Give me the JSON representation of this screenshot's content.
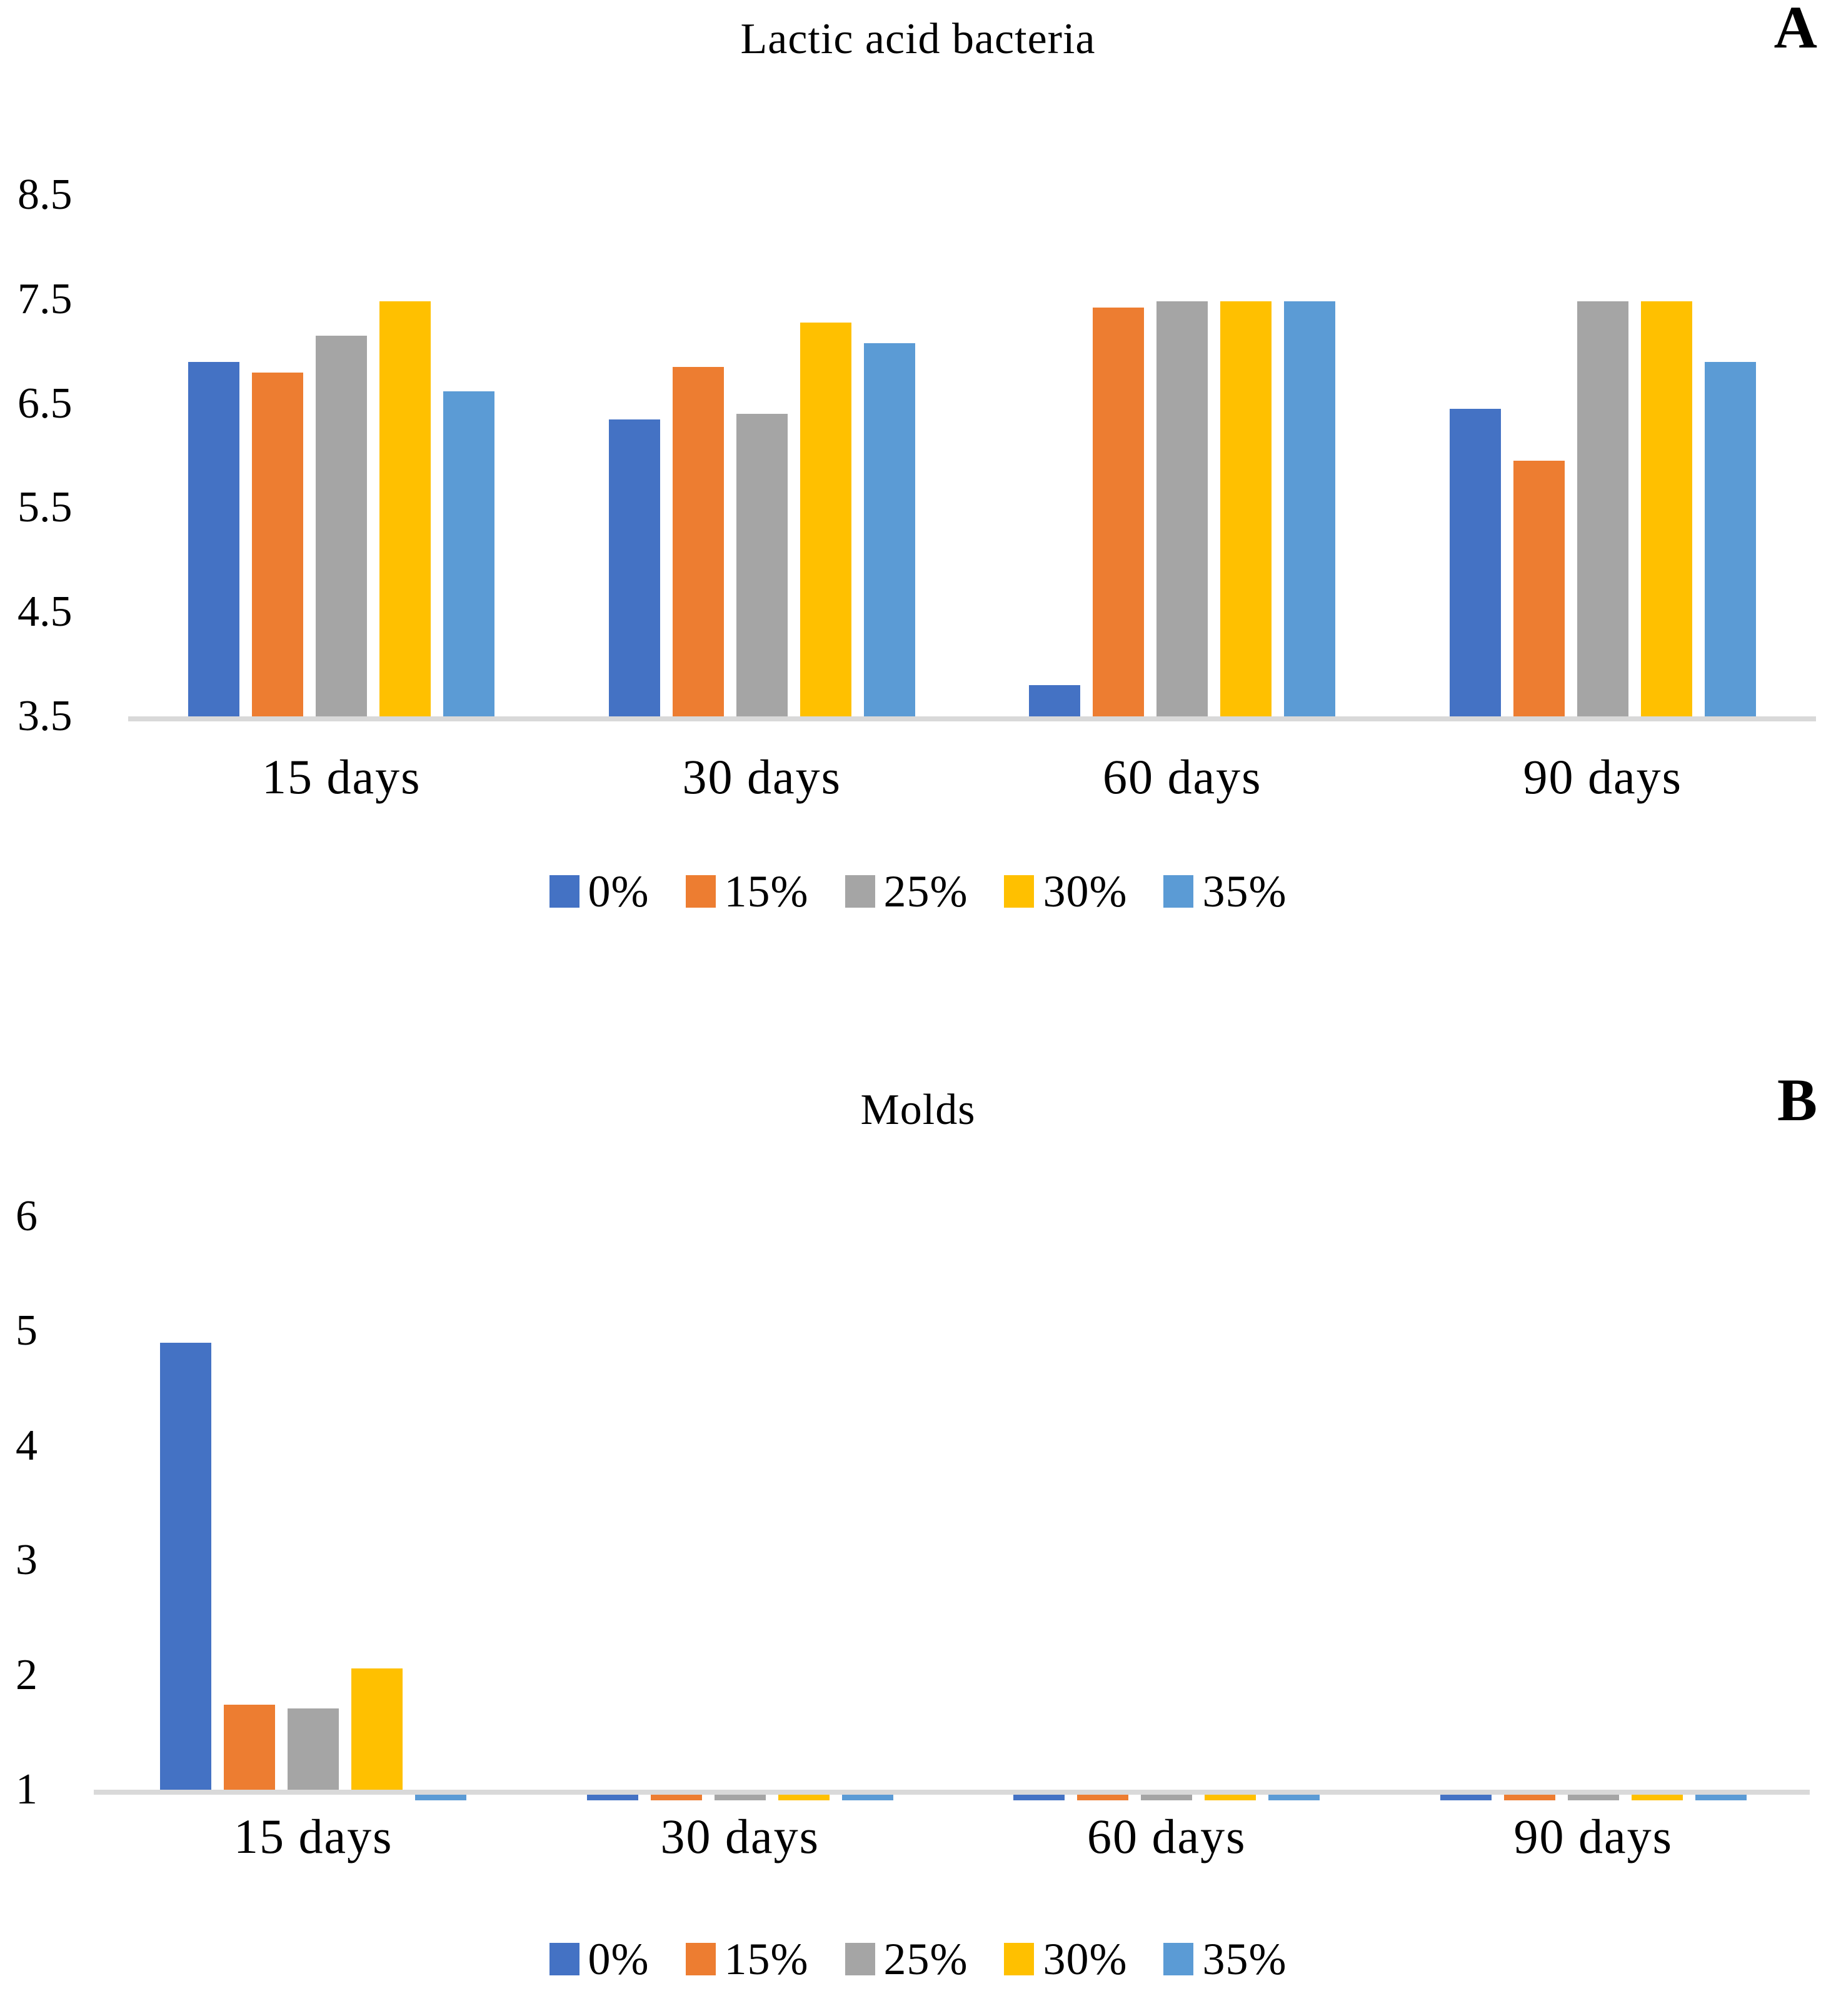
{
  "figure": {
    "background": "#ffffff",
    "text_color": "#000000",
    "axis_line_color": "#d9d9d9"
  },
  "chart_data": [
    {
      "type": "bar",
      "panel": "A",
      "title": "Lactic acid bacteria",
      "corner_label": "A",
      "categories": [
        "15 days",
        "30 days",
        "60 days",
        "90 days"
      ],
      "series": [
        {
          "name": "0%",
          "color": "#4472C4",
          "values": [
            6.9,
            6.35,
            3.8,
            6.45
          ]
        },
        {
          "name": "15%",
          "color": "#ED7D31",
          "values": [
            6.8,
            6.85,
            7.42,
            5.95
          ]
        },
        {
          "name": "25%",
          "color": "#A5A5A5",
          "values": [
            7.15,
            6.4,
            7.48,
            7.48
          ]
        },
        {
          "name": "30%",
          "color": "#FFC000",
          "values": [
            7.48,
            7.28,
            7.48,
            7.48
          ]
        },
        {
          "name": "35%",
          "color": "#5B9BD5",
          "values": [
            6.62,
            7.08,
            7.48,
            6.9
          ]
        }
      ],
      "legend_labels": [
        "0%",
        "15%",
        "25%",
        "30%",
        "35%"
      ],
      "y_axis": {
        "ticks": [
          "8.5",
          "7.5",
          "6.5",
          "5.5",
          "4.5",
          "3.5"
        ],
        "min": 3.5,
        "max": 8.5
      },
      "layout_hints": {
        "grid": "off",
        "legend_position": "bottom-center"
      }
    },
    {
      "type": "bar",
      "panel": "B",
      "title": "Molds",
      "corner_label": "B",
      "categories": [
        "15 days",
        "30 days",
        "60 days",
        "90 days"
      ],
      "series": [
        {
          "name": "0%",
          "color": "#4472C4",
          "values": [
            4.9,
            1.0,
            1.0,
            1.0
          ]
        },
        {
          "name": "15%",
          "color": "#ED7D31",
          "values": [
            1.74,
            1.0,
            1.0,
            1.0
          ]
        },
        {
          "name": "25%",
          "color": "#A5A5A5",
          "values": [
            1.71,
            1.0,
            1.0,
            1.0
          ]
        },
        {
          "name": "30%",
          "color": "#FFC000",
          "values": [
            2.06,
            1.0,
            1.0,
            1.0
          ]
        },
        {
          "name": "35%",
          "color": "#5B9BD5",
          "values": [
            1.0,
            1.0,
            1.0,
            1.0
          ]
        }
      ],
      "legend_labels": [
        "0%",
        "15%",
        "25%",
        "30%",
        "35%"
      ],
      "y_axis": {
        "ticks": [
          "6",
          "5",
          "4",
          "3",
          "2",
          "1"
        ],
        "min": 1,
        "max": 6
      },
      "layout_hints": {
        "grid": "off",
        "legend_position": "bottom-center"
      }
    }
  ]
}
